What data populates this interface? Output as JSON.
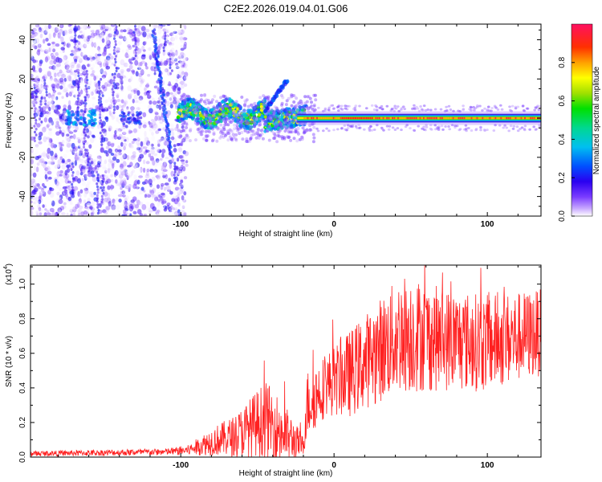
{
  "chart_data": [
    {
      "id": "spectrogram",
      "type": "heatmap",
      "title": "C2E2.2026.019.04.01.G06",
      "xlabel": "Height of straight line (km)",
      "ylabel": "Frequency (Hz)",
      "xlim": [
        -198,
        135
      ],
      "ylim": [
        -50,
        48
      ],
      "xticks": [
        {
          "value": -100,
          "label": "-100"
        },
        {
          "value": 0,
          "label": "0"
        },
        {
          "value": 100,
          "label": "100"
        }
      ],
      "yticks": [
        {
          "value": 40,
          "label": "40"
        },
        {
          "value": 20,
          "label": "20"
        },
        {
          "value": 0,
          "label": "0"
        },
        {
          "value": -20,
          "label": "-20"
        },
        {
          "value": -40,
          "label": "-40"
        }
      ],
      "colorbar": {
        "label": "Normalized spectral amplitude",
        "range": [
          0,
          1
        ],
        "ticks": [
          {
            "value": 0.0,
            "label": "0.0"
          },
          {
            "value": 0.2,
            "label": "0.2"
          },
          {
            "value": 0.4,
            "label": "0.4"
          },
          {
            "value": 0.6,
            "label": "0.6"
          },
          {
            "value": 0.8,
            "label": "0.8"
          }
        ],
        "colors": [
          "#ffffff",
          "#c8a8ff",
          "#7a3cff",
          "#2a00f0",
          "#0050ff",
          "#00c0f0",
          "#00d890",
          "#00e000",
          "#a0e000",
          "#ffff00",
          "#ffa000",
          "#ff3000",
          "#ff1060"
        ]
      },
      "features": {
        "noise_region_km": [
          -198,
          -100
        ],
        "onset_km": -102,
        "carrier_line_hz": 0,
        "clean_signal_from_km": -20,
        "branch_feature": {
          "x_km": [
            -45,
            -30
          ],
          "freq_hz": [
            4,
            20
          ]
        },
        "descending_streak": {
          "x_km": [
            -118,
            -106
          ],
          "freq_hz": [
            45,
            -20
          ]
        }
      }
    },
    {
      "id": "snr",
      "type": "line",
      "xlabel": "Height of straight line (km)",
      "ylabel": "SNR (10 * v/v)",
      "scale_label": "(x10",
      "scale_exponent": "4",
      "series_color": "#ff2020",
      "xlim": [
        -198,
        135
      ],
      "ylim": [
        0,
        1.11
      ],
      "xticks": [
        {
          "value": -100,
          "label": "-100"
        },
        {
          "value": 0,
          "label": "0"
        },
        {
          "value": 100,
          "label": "100"
        }
      ],
      "yticks": [
        {
          "value": 1.0,
          "label": "1.0"
        },
        {
          "value": 0.8,
          "label": "0.8"
        },
        {
          "value": 0.6,
          "label": "0.6"
        },
        {
          "value": 0.4,
          "label": "0.4"
        },
        {
          "value": 0.2,
          "label": "0.2"
        },
        {
          "value": 0.0,
          "label": "0.0"
        }
      ],
      "envelope": [
        {
          "x": -198,
          "mid": 0.02,
          "amp": 0.015
        },
        {
          "x": -110,
          "mid": 0.03,
          "amp": 0.02
        },
        {
          "x": -95,
          "mid": 0.04,
          "amp": 0.03
        },
        {
          "x": -80,
          "mid": 0.09,
          "amp": 0.08
        },
        {
          "x": -65,
          "mid": 0.12,
          "amp": 0.12
        },
        {
          "x": -45,
          "mid": 0.22,
          "amp": 0.22
        },
        {
          "x": -35,
          "mid": 0.15,
          "amp": 0.2
        },
        {
          "x": -20,
          "mid": 0.06,
          "amp": 0.06
        },
        {
          "x": -18,
          "mid": 0.3,
          "amp": 0.2
        },
        {
          "x": -5,
          "mid": 0.42,
          "amp": 0.18
        },
        {
          "x": 10,
          "mid": 0.48,
          "amp": 0.25
        },
        {
          "x": 30,
          "mid": 0.62,
          "amp": 0.3
        },
        {
          "x": 45,
          "mid": 0.72,
          "amp": 0.35
        },
        {
          "x": 70,
          "mid": 0.68,
          "amp": 0.3
        },
        {
          "x": 100,
          "mid": 0.66,
          "amp": 0.28
        },
        {
          "x": 135,
          "mid": 0.72,
          "amp": 0.25
        }
      ]
    }
  ]
}
